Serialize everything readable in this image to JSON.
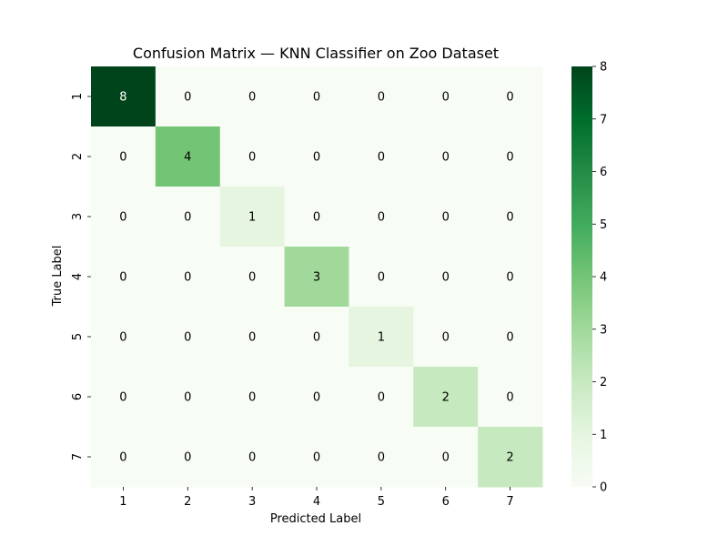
{
  "chart_data": {
    "type": "heatmap",
    "title": "Confusion Matrix — KNN Classifier on Zoo Dataset",
    "xlabel": "Predicted Label",
    "ylabel": "True Label",
    "x_categories": [
      "1",
      "2",
      "3",
      "4",
      "5",
      "6",
      "7"
    ],
    "y_categories": [
      "1",
      "2",
      "3",
      "4",
      "5",
      "6",
      "7"
    ],
    "matrix": [
      [
        8,
        0,
        0,
        0,
        0,
        0,
        0
      ],
      [
        0,
        4,
        0,
        0,
        0,
        0,
        0
      ],
      [
        0,
        0,
        1,
        0,
        0,
        0,
        0
      ],
      [
        0,
        0,
        0,
        3,
        0,
        0,
        0
      ],
      [
        0,
        0,
        0,
        0,
        1,
        0,
        0
      ],
      [
        0,
        0,
        0,
        0,
        0,
        2,
        0
      ],
      [
        0,
        0,
        0,
        0,
        0,
        0,
        2
      ]
    ],
    "colormap": "Greens",
    "vmin": 0,
    "vmax": 8,
    "colorbar_ticks": [
      "0",
      "1",
      "2",
      "3",
      "4",
      "5",
      "6",
      "7",
      "8"
    ],
    "annotations": true,
    "grid": false
  }
}
